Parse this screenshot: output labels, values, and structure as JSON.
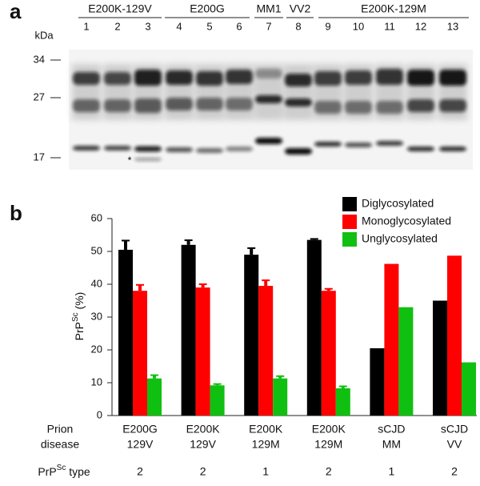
{
  "panel_a": {
    "label": "a",
    "kda_label": "kDa",
    "markers": [
      "34",
      "27",
      "17"
    ],
    "groups": [
      "E200K-129V",
      "E200G",
      "MM1",
      "VV2",
      "E200K-129M"
    ],
    "lanes": [
      "1",
      "2",
      "3",
      "4",
      "5",
      "6",
      "7",
      "8",
      "9",
      "10",
      "11",
      "12",
      "13"
    ],
    "asterisk": "*"
  },
  "chart_data": {
    "type": "bar",
    "panel_label": "b",
    "y_label": {
      "text": "PrP",
      "superscript": "Sc",
      "suffix": " (%)"
    },
    "row_label": [
      "Prion",
      "disease"
    ],
    "categories": [
      [
        "E200G",
        "129V"
      ],
      [
        "E200K",
        "129V"
      ],
      [
        "E200K",
        "129M"
      ],
      [
        "E200K",
        "129M"
      ],
      [
        "sCJD",
        "MM"
      ],
      [
        "sCJD",
        "VV"
      ]
    ],
    "type_label": {
      "text": "PrP",
      "superscript": "Sc",
      "suffix": " type"
    },
    "types": [
      2,
      2,
      1,
      2,
      1,
      2
    ],
    "series": [
      {
        "name": "Diglycosylated",
        "color": "#000000",
        "values": [
          50.5,
          52,
          49,
          53.5,
          20.5,
          35
        ],
        "errors": [
          2.8,
          1.4,
          2,
          0.3,
          null,
          null
        ]
      },
      {
        "name": "Monoglycosylated",
        "color": "#ff0000",
        "values": [
          38,
          39,
          39.5,
          38,
          46.2,
          48.7
        ],
        "errors": [
          1.8,
          1,
          1.7,
          0.6,
          null,
          null
        ]
      },
      {
        "name": "Unglycosylated",
        "color": "#10c010",
        "values": [
          11.3,
          9.2,
          11.3,
          8.3,
          33,
          16.2
        ],
        "errors": [
          1,
          0.4,
          0.7,
          0.6,
          null,
          null
        ]
      }
    ],
    "ylim": [
      0,
      60
    ],
    "yticks": [
      0,
      10,
      20,
      30,
      40,
      50,
      60
    ],
    "legend": "top-right"
  }
}
